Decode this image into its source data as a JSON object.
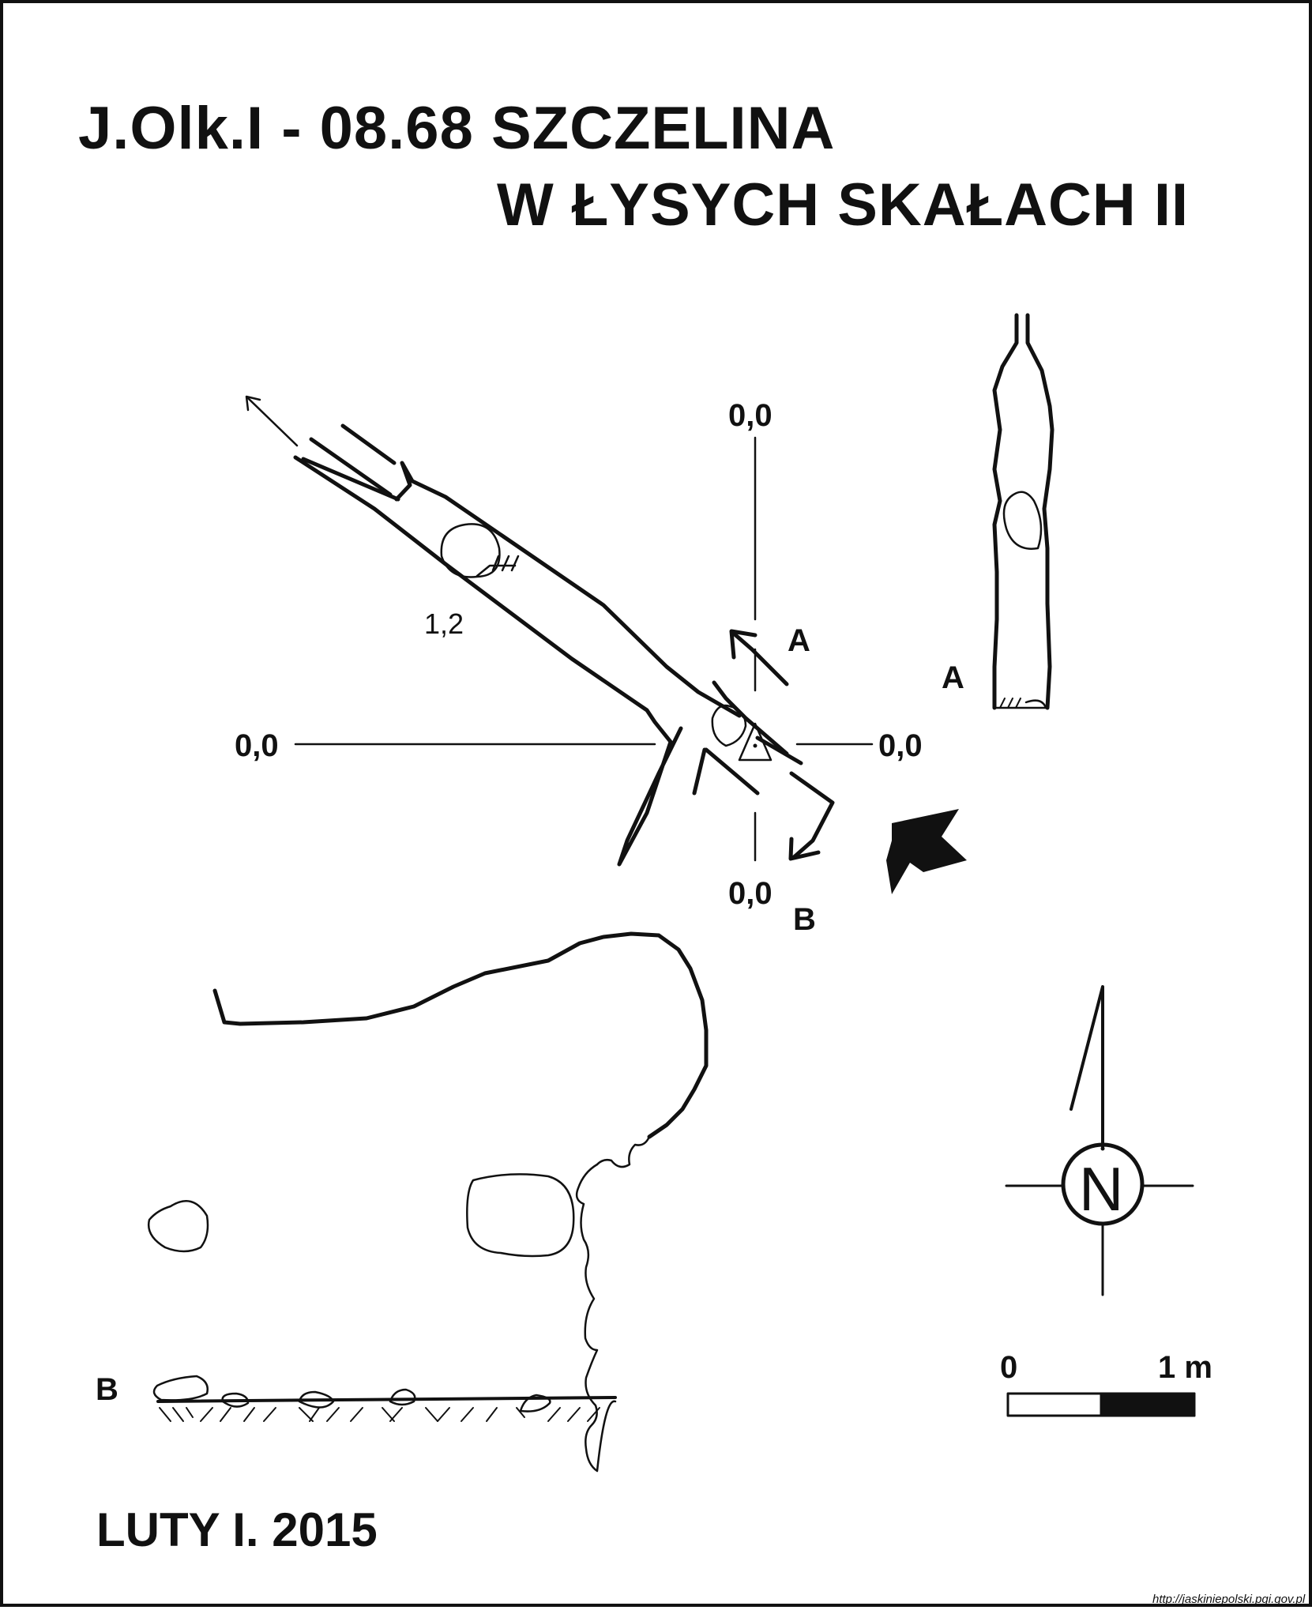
{
  "title": {
    "line1": "J.Olk.I - 08.68  SZCZELINA",
    "line2": "W ŁYSYCH SKAŁACH II"
  },
  "plan": {
    "zero_top": "0,0",
    "zero_left": "0,0",
    "zero_right": "0,0",
    "zero_bottom": "0,0",
    "depth_label": "1,2",
    "section_a_label": "A",
    "section_b_label": "B"
  },
  "cross_section_a": {
    "label": "A"
  },
  "cross_section_b": {
    "label": "B"
  },
  "compass": {
    "north_letter": "N"
  },
  "scale_bar": {
    "start_label": "0",
    "end_label": "1 m"
  },
  "footer": {
    "date": "LUTY I. 2015",
    "source": "http://jaskiniepolski.pgi.gov.pl"
  },
  "colors": {
    "ink": "#111111",
    "paper": "#ffffff"
  }
}
